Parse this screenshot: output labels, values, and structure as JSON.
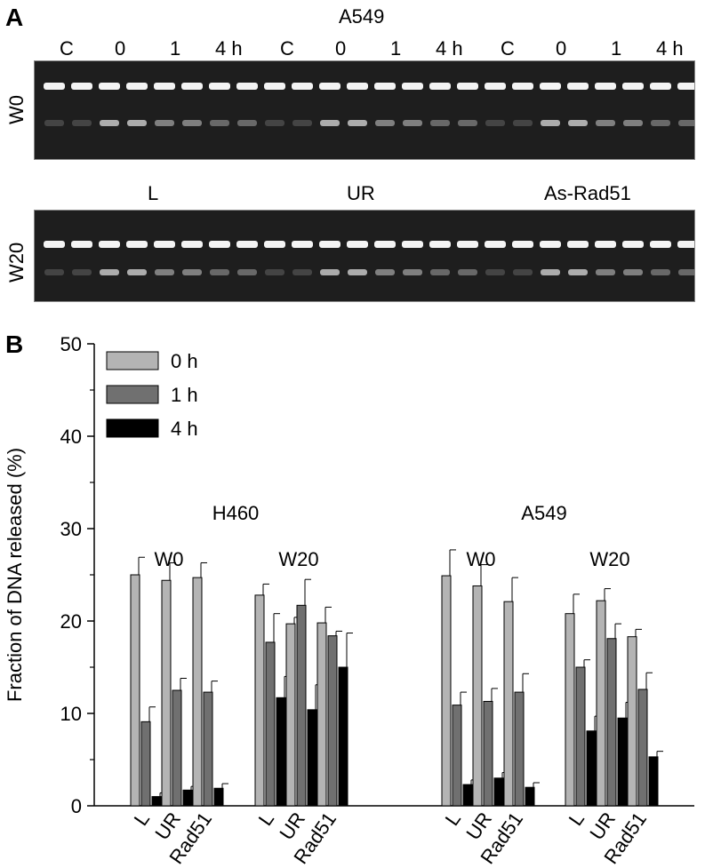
{
  "panel_a": {
    "letter": "A",
    "cell_line": "A549",
    "lane_labels": [
      "C",
      "0",
      "1",
      "4 h",
      "C",
      "0",
      "1",
      "4 h",
      "C",
      "0",
      "1",
      "4 h"
    ],
    "row_top": "W0",
    "row_bottom": "W20",
    "groups": [
      "L",
      "UR",
      "As-Rad51"
    ]
  },
  "panel_b": {
    "letter": "B"
  },
  "chart_data": {
    "type": "bar",
    "ylabel": "Fraction of DNA released (%)",
    "xlabel": "",
    "ylim": [
      0,
      50
    ],
    "yticks": [
      0,
      10,
      20,
      30,
      40,
      50
    ],
    "legend": {
      "position": "top-left",
      "entries": [
        "0 h",
        "1 h",
        "4 h"
      ]
    },
    "colors": {
      "0 h": "#b4b4b4",
      "1 h": "#707070",
      "4 h": "#000000"
    },
    "cell_lines": [
      {
        "name": "H460",
        "wash_groups": [
          {
            "name": "W0",
            "categories": [
              "L",
              "UR",
              "Rad51"
            ],
            "series": [
              {
                "name": "0 h",
                "values": [
                  25.0,
                  24.4,
                  24.7
                ],
                "errors": [
                  1.9,
                  1.9,
                  1.6
                ]
              },
              {
                "name": "1 h",
                "values": [
                  9.1,
                  12.5,
                  12.3
                ],
                "errors": [
                  1.6,
                  1.3,
                  1.2
                ]
              },
              {
                "name": "4 h",
                "values": [
                  1.0,
                  1.7,
                  1.9
                ],
                "errors": [
                  0.4,
                  0.4,
                  0.5
                ]
              }
            ]
          },
          {
            "name": "W20",
            "categories": [
              "L",
              "UR",
              "Rad51"
            ],
            "series": [
              {
                "name": "0 h",
                "values": [
                  22.8,
                  19.7,
                  19.8
                ],
                "errors": [
                  1.2,
                  0.7,
                  1.7
                ]
              },
              {
                "name": "1 h",
                "values": [
                  17.7,
                  21.7,
                  18.4
                ],
                "errors": [
                  3.1,
                  2.8,
                  0.5
                ]
              },
              {
                "name": "4 h",
                "values": [
                  11.7,
                  10.4,
                  15.0
                ],
                "errors": [
                  2.3,
                  2.7,
                  3.7
                ]
              }
            ]
          }
        ]
      },
      {
        "name": "A549",
        "wash_groups": [
          {
            "name": "W0",
            "categories": [
              "L",
              "UR",
              "Rad51"
            ],
            "series": [
              {
                "name": "0 h",
                "values": [
                  24.9,
                  23.8,
                  22.1
                ],
                "errors": [
                  2.8,
                  2.3,
                  2.6
                ]
              },
              {
                "name": "1 h",
                "values": [
                  10.9,
                  11.3,
                  12.3
                ],
                "errors": [
                  1.4,
                  1.4,
                  2.0
                ]
              },
              {
                "name": "4 h",
                "values": [
                  2.3,
                  3.0,
                  2.0
                ],
                "errors": [
                  0.5,
                  0.6,
                  0.5
                ]
              }
            ]
          },
          {
            "name": "W20",
            "categories": [
              "L",
              "UR",
              "Rad51"
            ],
            "series": [
              {
                "name": "0 h",
                "values": [
                  20.8,
                  22.2,
                  18.3
                ],
                "errors": [
                  2.1,
                  1.3,
                  0.8
                ]
              },
              {
                "name": "1 h",
                "values": [
                  15.0,
                  18.1,
                  12.6
                ],
                "errors": [
                  0.8,
                  1.6,
                  1.8
                ]
              },
              {
                "name": "4 h",
                "values": [
                  8.1,
                  9.5,
                  5.3
                ],
                "errors": [
                  1.6,
                  1.7,
                  0.6
                ]
              }
            ]
          }
        ]
      }
    ]
  }
}
